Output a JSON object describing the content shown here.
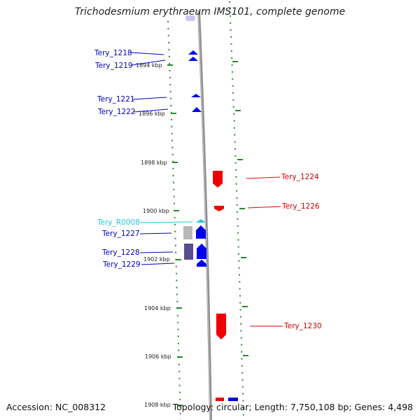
{
  "title": "Trichodesmium erythraeum IMS101, complete genome",
  "footer": {
    "accession": "Accession: NC_008312",
    "summary": "Topology: circular; Length: 7,750,108 bp; Genes: 4,498"
  },
  "colors": {
    "forward_gene": "#0000ee",
    "reverse_gene": "#ee0000",
    "rna_gene": "#22c8e0",
    "backbone": "#909090",
    "ticks": "#2a8a2a",
    "pseudo_grey": "#b8b8b8",
    "pseudo_purple": "#5a4c90"
  },
  "ticks": [
    {
      "label": "1894 kbp"
    },
    {
      "label": "1896 kbp"
    },
    {
      "label": "1898 kbp"
    },
    {
      "label": "1900 kbp"
    },
    {
      "label": "1902 kbp"
    },
    {
      "label": "1904 kbp"
    },
    {
      "label": "1906 kbp"
    },
    {
      "label": "1908 kbp"
    }
  ],
  "genes_left": [
    {
      "name": "Tery_1218",
      "type": "forward"
    },
    {
      "name": "Tery_1219",
      "type": "forward"
    },
    {
      "name": "Tery_1221",
      "type": "forward"
    },
    {
      "name": "Tery_1222",
      "type": "forward"
    },
    {
      "name": "Tery_R0008",
      "type": "rna"
    },
    {
      "name": "Tery_1227",
      "type": "forward"
    },
    {
      "name": "Tery_1228",
      "type": "forward"
    },
    {
      "name": "Tery_1229",
      "type": "forward"
    }
  ],
  "genes_right": [
    {
      "name": "Tery_1224",
      "type": "reverse"
    },
    {
      "name": "Tery_1226",
      "type": "reverse"
    },
    {
      "name": "Tery_1230",
      "type": "reverse"
    }
  ]
}
